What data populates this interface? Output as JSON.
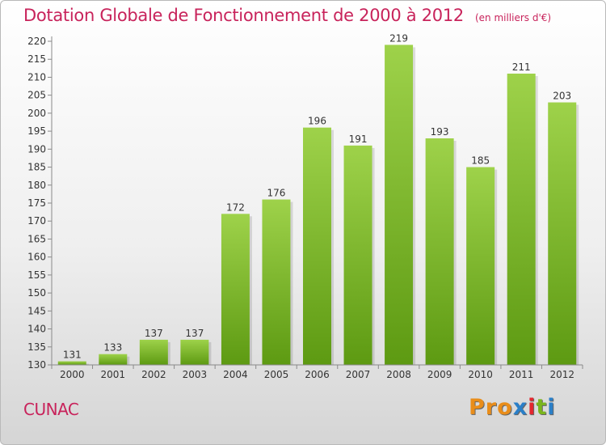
{
  "header": {
    "title": "Dotation Globale de Fonctionnement de 2000 à 2012",
    "unit": "(en milliers d'€)"
  },
  "footer": {
    "commune": "CUNAC",
    "logo_text": "Proxiti"
  },
  "colors": {
    "title": "#c8235b",
    "bar_top": "#9ed24a",
    "bar_bottom": "#5d9a12",
    "logo": [
      "#e98d1a",
      "#e98d1a",
      "#e98d1a",
      "#2a7fc8",
      "#e3262e",
      "#7ab51d",
      "#2a7fc8"
    ]
  },
  "chart_data": {
    "type": "bar",
    "categories": [
      "2000",
      "2001",
      "2002",
      "2003",
      "2004",
      "2005",
      "2006",
      "2007",
      "2008",
      "2009",
      "2010",
      "2011",
      "2012"
    ],
    "values": [
      131,
      133,
      137,
      137,
      172,
      176,
      196,
      191,
      219,
      193,
      185,
      211,
      203
    ],
    "title": "Dotation Globale de Fonctionnement de 2000 à 2012",
    "xlabel": "",
    "ylabel": "",
    "ylim": [
      130,
      220
    ],
    "yticks": [
      130,
      135,
      140,
      145,
      150,
      155,
      160,
      165,
      170,
      175,
      180,
      185,
      190,
      195,
      200,
      205,
      210,
      215,
      220
    ],
    "grid": false,
    "data_labels": true
  }
}
